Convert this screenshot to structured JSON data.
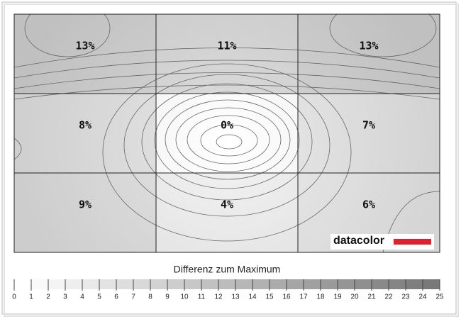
{
  "chart_data": {
    "type": "heatmap",
    "values": [
      [
        13,
        11,
        13
      ],
      [
        8,
        0,
        7
      ],
      [
        9,
        4,
        6
      ]
    ],
    "value_labels": [
      [
        "13%",
        "11%",
        "13%"
      ],
      [
        "8%",
        "0%",
        "7%"
      ],
      [
        "9%",
        "4%",
        "6%"
      ]
    ],
    "colorbar": {
      "title": "Differenz zum Maximum",
      "lim": [
        0,
        25
      ],
      "ticks": [
        0,
        1,
        2,
        3,
        4,
        5,
        6,
        7,
        8,
        9,
        10,
        11,
        12,
        13,
        14,
        15,
        16,
        17,
        18,
        19,
        20,
        21,
        22,
        23,
        24,
        25
      ]
    },
    "logo": "datacolor"
  }
}
